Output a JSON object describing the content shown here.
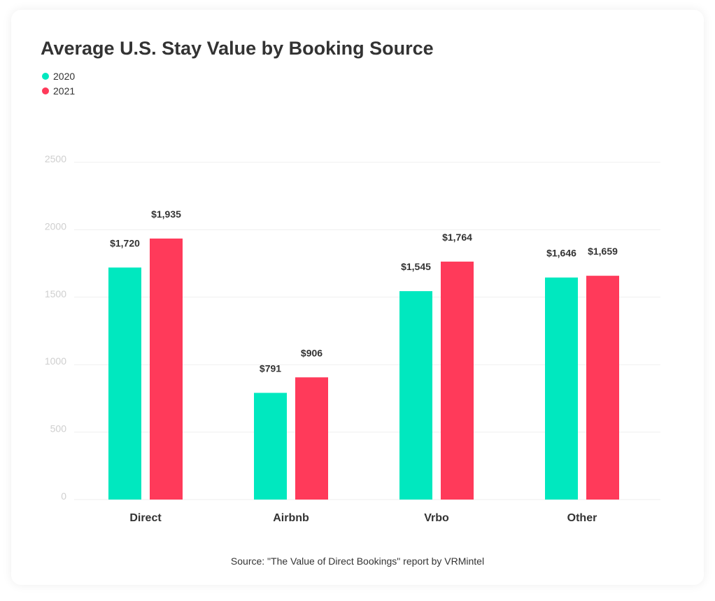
{
  "colors": {
    "series_2020": "#00E8BF",
    "series_2021": "#FF3A5A",
    "grid": "#EFEFEF",
    "tick": "#CFCFCF",
    "text": "#333333"
  },
  "chart_data": {
    "type": "bar",
    "title": "Average U.S. Stay Value by Booking Source",
    "categories": [
      "Direct",
      "Airbnb",
      "Vrbo",
      "Other"
    ],
    "series": [
      {
        "name": "2020",
        "values": [
          1720,
          791,
          1545,
          1646
        ],
        "labels": [
          "$1,720",
          "$791",
          "$1,545",
          "$1,646"
        ]
      },
      {
        "name": "2021",
        "values": [
          1935,
          906,
          1764,
          1659
        ],
        "labels": [
          "$1,935",
          "$906",
          "$1,764",
          "$1,659"
        ]
      }
    ],
    "ylim": [
      0,
      2500
    ],
    "yticks": [
      "0",
      "500",
      "1000",
      "1500",
      "2000",
      "2500"
    ],
    "grid": true,
    "legend_position": "top-left"
  },
  "source": "Source: \"The Value of Direct Bookings\" report by VRMintel"
}
